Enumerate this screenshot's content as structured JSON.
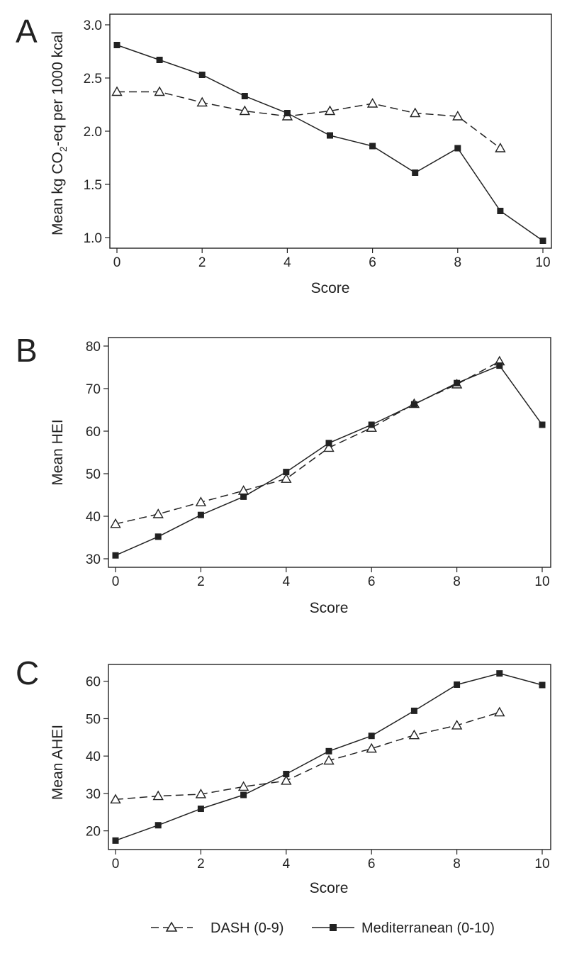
{
  "legend": {
    "items": [
      {
        "label": "DASH (0-9)",
        "style": "dashed",
        "marker": "open-triangle"
      },
      {
        "label": "Mediterranean (0-10)",
        "style": "solid",
        "marker": "filled-square"
      }
    ]
  },
  "chart_data": [
    {
      "type": "line",
      "panel": "A",
      "xlabel": "Score",
      "ylabel_parts": [
        "Mean kg CO",
        "2",
        "-eq per 1000 kcal"
      ],
      "xlim": [
        0,
        10
      ],
      "ylim": [
        0.9,
        3.1
      ],
      "xticks": [
        "0",
        "2",
        "4",
        "6",
        "8",
        "10"
      ],
      "yticks": [
        "1.0",
        "1.5",
        "2.0",
        "2.5",
        "3.0"
      ],
      "grid": false,
      "series": [
        {
          "name": "DASH (0-9)",
          "x": [
            0,
            1,
            2,
            3,
            4,
            5,
            6,
            7,
            8,
            9
          ],
          "values": [
            2.37,
            2.37,
            2.27,
            2.19,
            2.14,
            2.19,
            2.26,
            2.17,
            2.14,
            1.84
          ]
        },
        {
          "name": "Mediterranean (0-10)",
          "x": [
            0,
            1,
            2,
            3,
            4,
            5,
            6,
            7,
            8,
            9,
            10
          ],
          "values": [
            2.81,
            2.67,
            2.53,
            2.33,
            2.17,
            1.96,
            1.86,
            1.61,
            1.84,
            1.25,
            0.97
          ]
        }
      ]
    },
    {
      "type": "line",
      "panel": "B",
      "xlabel": "Score",
      "ylabel_parts": [
        "Mean HEI"
      ],
      "xlim": [
        0,
        10
      ],
      "ylim": [
        28,
        82
      ],
      "xticks": [
        "0",
        "2",
        "4",
        "6",
        "8",
        "10"
      ],
      "yticks": [
        "30",
        "40",
        "50",
        "60",
        "70",
        "80"
      ],
      "grid": false,
      "series": [
        {
          "name": "DASH (0-9)",
          "x": [
            0,
            1,
            2,
            3,
            4,
            5,
            6,
            7,
            8,
            9
          ],
          "values": [
            38.2,
            40.5,
            43.3,
            46.0,
            48.8,
            56.1,
            60.8,
            66.4,
            71.0,
            76.4
          ]
        },
        {
          "name": "Mediterranean (0-10)",
          "x": [
            0,
            1,
            2,
            3,
            4,
            5,
            6,
            7,
            8,
            9,
            10
          ],
          "values": [
            30.8,
            35.2,
            40.3,
            44.6,
            50.4,
            57.2,
            61.5,
            66.3,
            71.3,
            75.4,
            61.5
          ]
        }
      ]
    },
    {
      "type": "line",
      "panel": "C",
      "xlabel": "Score",
      "ylabel_parts": [
        "Mean AHEI"
      ],
      "xlim": [
        0,
        10
      ],
      "ylim": [
        15,
        64.5
      ],
      "xticks": [
        "0",
        "2",
        "4",
        "6",
        "8",
        "10"
      ],
      "yticks": [
        "20",
        "30",
        "40",
        "50",
        "60"
      ],
      "grid": false,
      "series": [
        {
          "name": "DASH (0-9)",
          "x": [
            0,
            1,
            2,
            3,
            4,
            5,
            6,
            7,
            8,
            9
          ],
          "values": [
            28.4,
            29.3,
            29.8,
            31.8,
            33.4,
            38.8,
            42.0,
            45.6,
            48.2,
            51.7
          ]
        },
        {
          "name": "Mediterranean (0-10)",
          "x": [
            0,
            1,
            2,
            3,
            4,
            5,
            6,
            7,
            8,
            9,
            10
          ],
          "values": [
            17.4,
            21.5,
            25.9,
            29.6,
            35.2,
            41.3,
            45.4,
            52.1,
            59.1,
            62.1,
            59.0
          ]
        }
      ]
    }
  ]
}
